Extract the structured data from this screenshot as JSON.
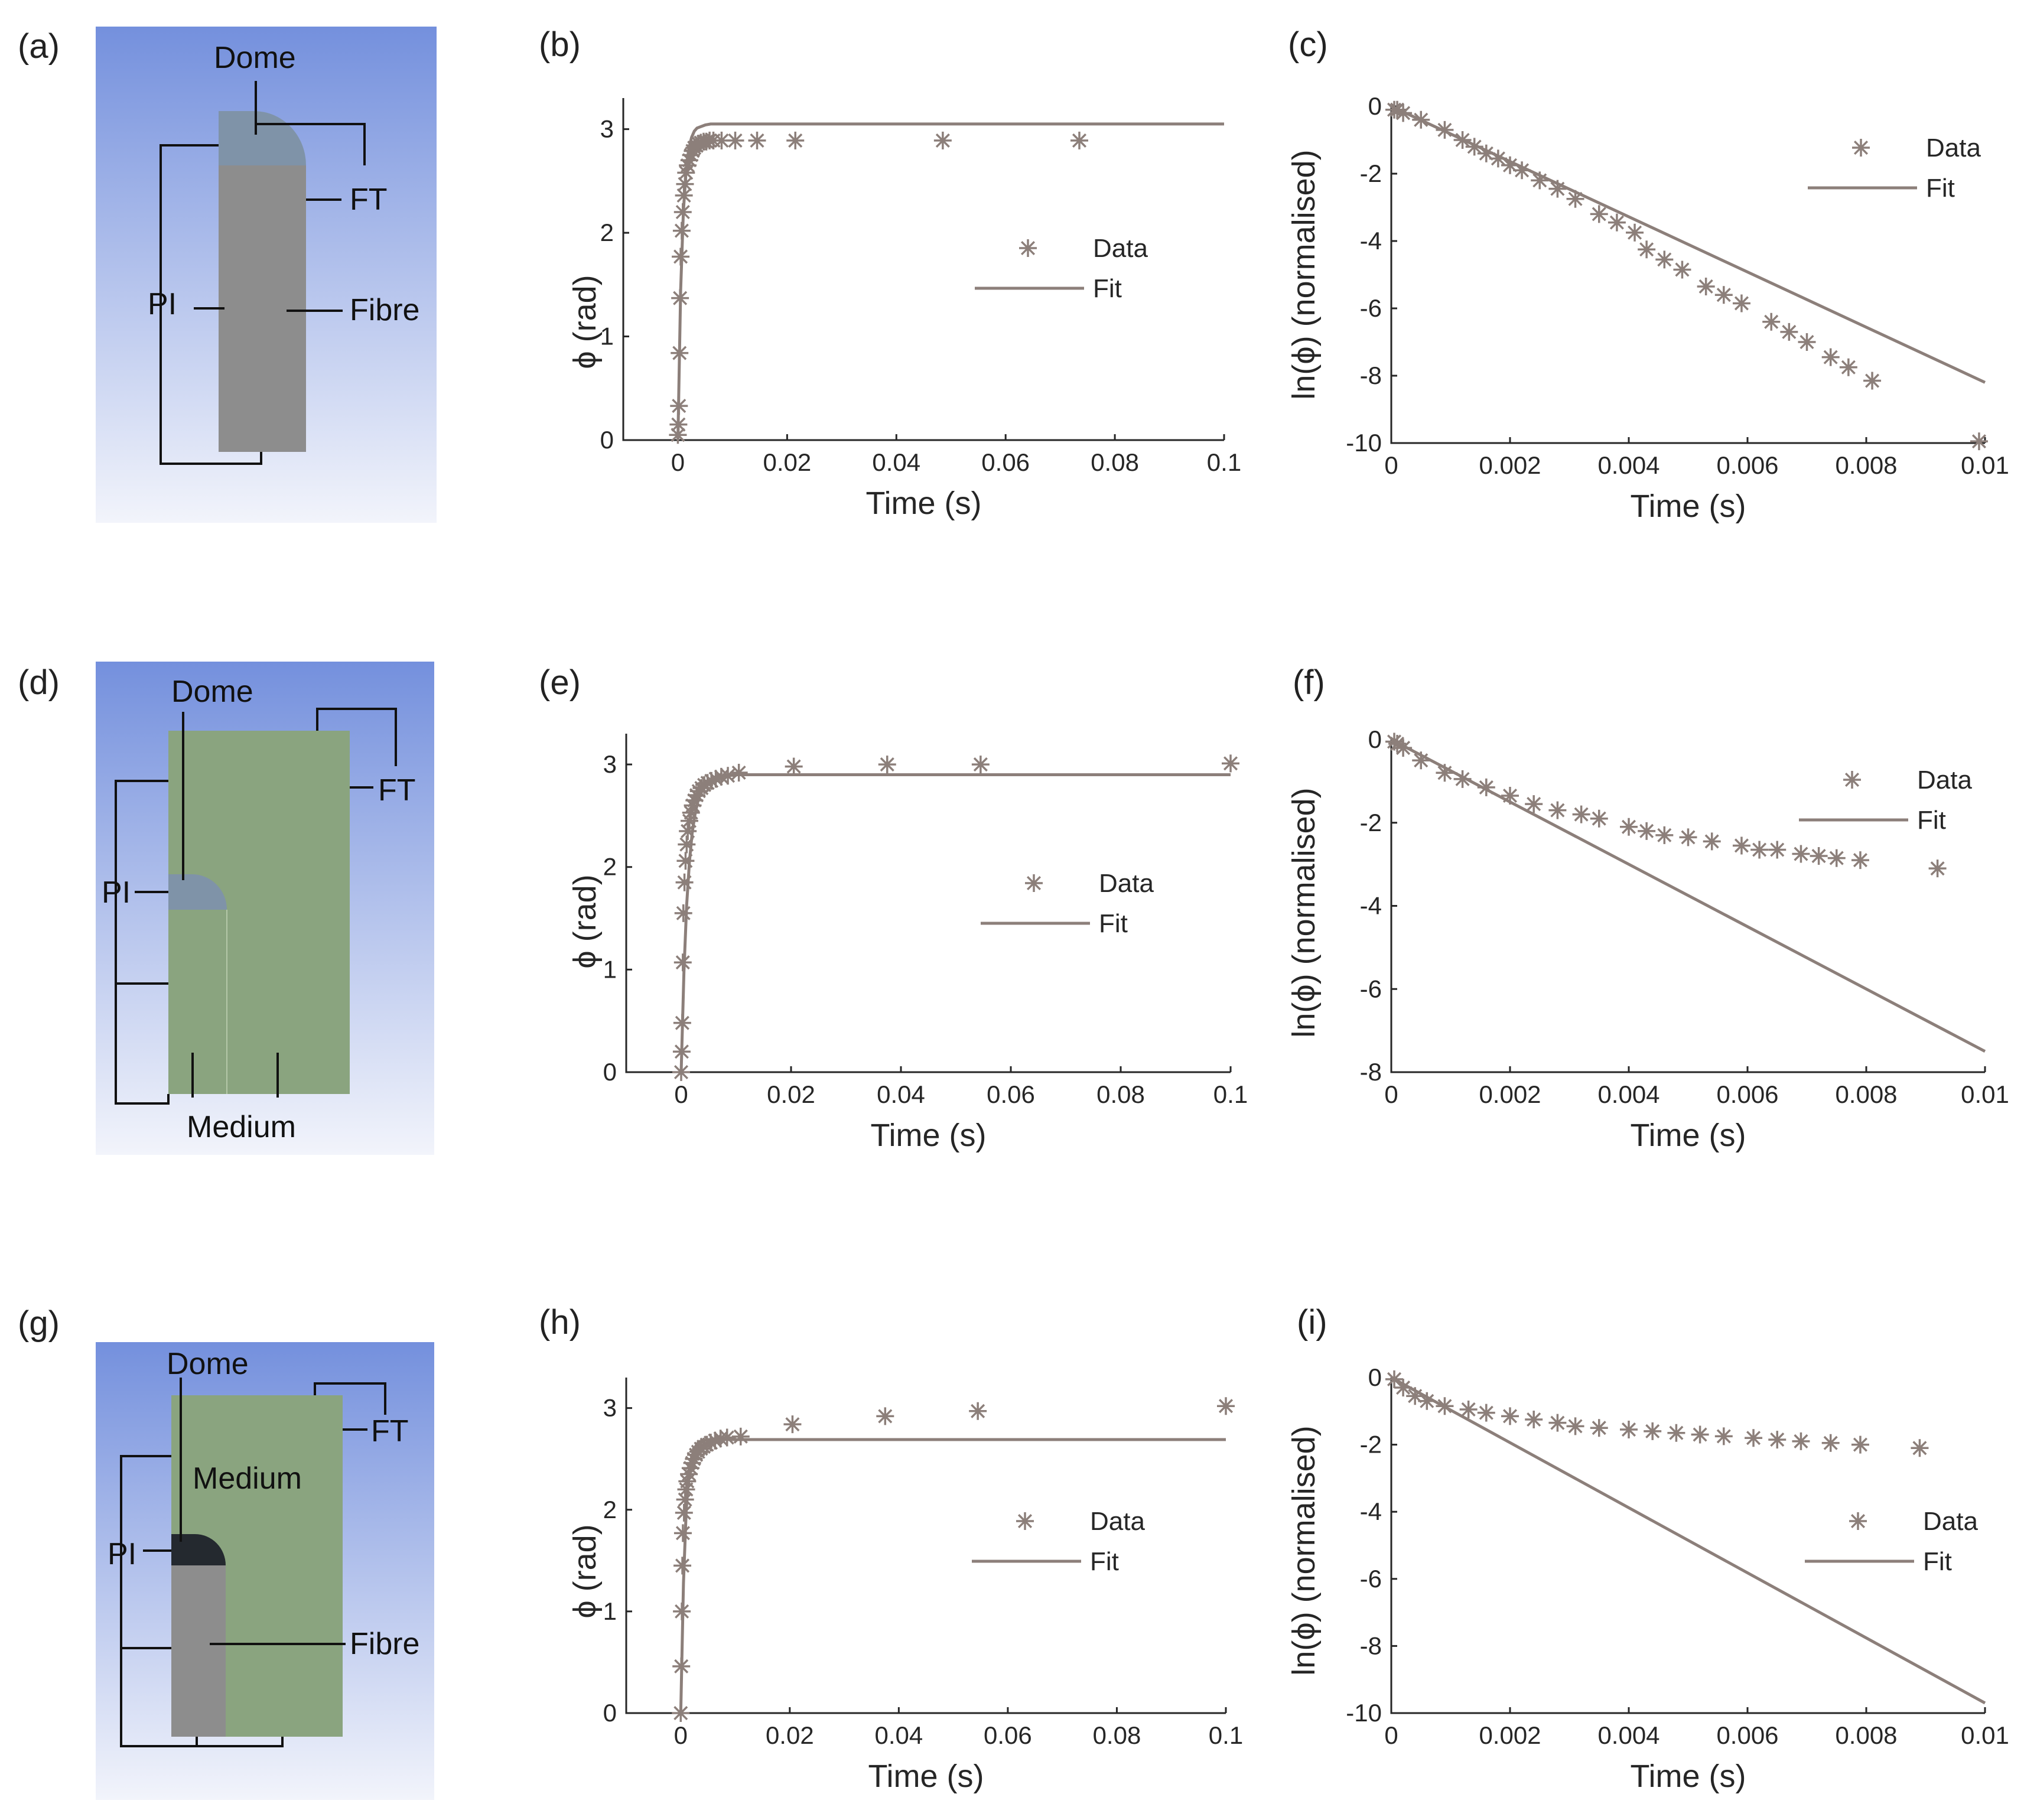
{
  "colors": {
    "series": "#8c7f7a",
    "axis": "#262626",
    "bg_top": "#7490dd",
    "bg_bottom": "#f2f4fb",
    "fibre": "#8d8d8d",
    "dome": "#7f93a8",
    "medium": "#8aa47f",
    "dome_dark": "#24292f"
  },
  "diagrams": [
    {
      "panel": "(a)",
      "labels": {
        "dome": "Dome",
        "ft": "FT",
        "pi": "PI",
        "fibre": "Fibre"
      }
    },
    {
      "panel": "(d)",
      "labels": {
        "dome": "Dome",
        "ft": "FT",
        "pi": "PI",
        "medium": "Medium"
      }
    },
    {
      "panel": "(g)",
      "labels": {
        "dome": "Dome",
        "ft": "FT",
        "pi": "PI",
        "medium": "Medium",
        "fibre": "Fibre"
      }
    }
  ],
  "chart_data": [
    {
      "id": "b",
      "panel": "(b)",
      "type": "scatter",
      "xlabel": "Time (s)",
      "ylabel": "ϕ (rad)",
      "xlim": [
        -0.01,
        0.1
      ],
      "ylim": [
        0,
        3.3
      ],
      "xticks": [
        0,
        0.02,
        0.04,
        0.06,
        0.08,
        0.1
      ],
      "xticklabels": [
        "0",
        "0.02",
        "0.04",
        "0.06",
        "0.08",
        "0.1"
      ],
      "yticks": [
        0,
        1,
        2,
        3
      ],
      "yticklabels": [
        "0",
        "1",
        "2",
        "3"
      ],
      "legend": {
        "data": "Data",
        "fit": "Fit"
      },
      "series": [
        {
          "name": "Data",
          "kind": "markers",
          "x": [
            0.0,
            0.0001,
            0.0002,
            0.0003,
            0.0004,
            0.0005,
            0.0007,
            0.0009,
            0.0011,
            0.0013,
            0.0015,
            0.0018,
            0.0021,
            0.0024,
            0.0027,
            0.003,
            0.0034,
            0.0038,
            0.0042,
            0.0047,
            0.0052,
            0.0058,
            0.0065,
            0.008,
            0.0105,
            0.0145,
            0.0215,
            0.0485,
            0.0735
          ],
          "y": [
            0.05,
            0.15,
            0.33,
            0.84,
            1.37,
            1.77,
            2.02,
            2.2,
            2.36,
            2.47,
            2.58,
            2.65,
            2.7,
            2.75,
            2.79,
            2.82,
            2.84,
            2.86,
            2.87,
            2.88,
            2.88,
            2.89,
            2.89,
            2.89,
            2.89,
            2.89,
            2.89,
            2.89,
            2.89
          ]
        },
        {
          "name": "Fit",
          "kind": "line",
          "x": [
            0.0,
            0.0005,
            0.001,
            0.0015,
            0.002,
            0.0025,
            0.003,
            0.0035,
            0.004,
            0.005,
            0.006,
            0.007,
            0.008,
            0.01,
            0.015,
            0.02,
            0.04,
            0.06,
            0.08,
            0.1
          ],
          "y": [
            0.0,
            1.44,
            2.2,
            2.6,
            2.81,
            2.92,
            2.98,
            3.01,
            3.02,
            3.04,
            3.05,
            3.05,
            3.05,
            3.05,
            3.05,
            3.05,
            3.05,
            3.05,
            3.05,
            3.05
          ]
        }
      ]
    },
    {
      "id": "c",
      "panel": "(c)",
      "type": "scatter",
      "xlabel": "Time (s)",
      "ylabel": "ln(ϕ) (normalised)",
      "xlim": [
        0,
        0.01
      ],
      "ylim": [
        -10,
        0
      ],
      "xticks": [
        0,
        0.002,
        0.004,
        0.006,
        0.008,
        0.01
      ],
      "xticklabels": [
        "0",
        "0.002",
        "0.004",
        "0.006",
        "0.008",
        "0.01"
      ],
      "yticks": [
        0,
        -2,
        -4,
        -6,
        -8,
        -10
      ],
      "yticklabels": [
        "0",
        "-2",
        "-4",
        "-6",
        "-8",
        "-10"
      ],
      "legend": {
        "data": "Data",
        "fit": "Fit"
      },
      "series": [
        {
          "name": "Data",
          "kind": "markers",
          "x": [
            5e-05,
            0.0001,
            0.0002,
            0.0005,
            0.0009,
            0.0012,
            0.0014,
            0.0016,
            0.0018,
            0.002,
            0.0022,
            0.0025,
            0.0028,
            0.0031,
            0.0035,
            0.0038,
            0.0041,
            0.0043,
            0.0046,
            0.0049,
            0.0053,
            0.0056,
            0.0059,
            0.0064,
            0.0067,
            0.007,
            0.0074,
            0.0077,
            0.0081,
            0.0099
          ],
          "y": [
            -0.1,
            -0.1,
            -0.2,
            -0.4,
            -0.7,
            -1.0,
            -1.2,
            -1.4,
            -1.55,
            -1.75,
            -1.9,
            -2.2,
            -2.45,
            -2.75,
            -3.2,
            -3.45,
            -3.75,
            -4.25,
            -4.55,
            -4.85,
            -5.35,
            -5.6,
            -5.85,
            -6.4,
            -6.7,
            -7.0,
            -7.45,
            -7.75,
            -8.15,
            -9.95
          ]
        },
        {
          "name": "Fit",
          "kind": "line",
          "x": [
            0,
            0.01
          ],
          "y": [
            0,
            -8.2
          ]
        }
      ]
    },
    {
      "id": "e",
      "panel": "(e)",
      "type": "scatter",
      "xlabel": "Time (s)",
      "ylabel": "ϕ (rad)",
      "xlim": [
        -0.01,
        0.1
      ],
      "ylim": [
        0,
        3.3
      ],
      "xticks": [
        0,
        0.02,
        0.04,
        0.06,
        0.08,
        0.1
      ],
      "xticklabels": [
        "0",
        "0.02",
        "0.04",
        "0.06",
        "0.08",
        "0.1"
      ],
      "yticks": [
        0,
        1,
        2,
        3
      ],
      "yticklabels": [
        "0",
        "1",
        "2",
        "3"
      ],
      "legend": {
        "data": "Data",
        "fit": "Fit"
      },
      "series": [
        {
          "name": "Data",
          "kind": "markers",
          "x": [
            0.0,
            0.0001,
            0.0002,
            0.0003,
            0.0004,
            0.0006,
            0.0008,
            0.001,
            0.0012,
            0.0015,
            0.0018,
            0.0021,
            0.0024,
            0.0028,
            0.0032,
            0.0037,
            0.0042,
            0.0048,
            0.0055,
            0.0063,
            0.0073,
            0.0085,
            0.0105,
            0.0205,
            0.0375,
            0.0545,
            0.1
          ],
          "y": [
            0.0,
            0.2,
            0.48,
            1.07,
            1.55,
            1.85,
            2.06,
            2.22,
            2.35,
            2.45,
            2.53,
            2.6,
            2.65,
            2.7,
            2.74,
            2.77,
            2.8,
            2.82,
            2.84,
            2.86,
            2.88,
            2.89,
            2.92,
            2.98,
            3.0,
            3.0,
            3.01
          ]
        },
        {
          "name": "Fit",
          "kind": "line",
          "x": [
            0.0,
            0.0005,
            0.001,
            0.0015,
            0.002,
            0.0025,
            0.003,
            0.0035,
            0.004,
            0.005,
            0.006,
            0.007,
            0.008,
            0.01,
            0.015,
            0.02,
            0.04,
            0.06,
            0.08,
            0.1
          ],
          "y": [
            0.0,
            0.98,
            1.63,
            2.05,
            2.33,
            2.51,
            2.63,
            2.71,
            2.76,
            2.83,
            2.86,
            2.88,
            2.89,
            2.9,
            2.9,
            2.9,
            2.9,
            2.9,
            2.9,
            2.9
          ]
        }
      ]
    },
    {
      "id": "f",
      "panel": "(f)",
      "type": "scatter",
      "xlabel": "Time (s)",
      "ylabel": "ln(ϕ) (normalised)",
      "xlim": [
        0,
        0.01
      ],
      "ylim": [
        -8,
        0
      ],
      "xticks": [
        0,
        0.002,
        0.004,
        0.006,
        0.008,
        0.01
      ],
      "xticklabels": [
        "0",
        "0.002",
        "0.004",
        "0.006",
        "0.008",
        "0.01"
      ],
      "yticks": [
        0,
        -2,
        -4,
        -6,
        -8
      ],
      "yticklabels": [
        "0",
        "-2",
        "-4",
        "-6",
        "-8"
      ],
      "legend": {
        "data": "Data",
        "fit": "Fit"
      },
      "series": [
        {
          "name": "Data",
          "kind": "markers",
          "x": [
            5e-05,
            0.0001,
            0.0002,
            0.0005,
            0.0009,
            0.0012,
            0.0016,
            0.002,
            0.0024,
            0.0028,
            0.0032,
            0.0035,
            0.004,
            0.0043,
            0.0046,
            0.005,
            0.0054,
            0.0059,
            0.0062,
            0.0065,
            0.0069,
            0.0072,
            0.0075,
            0.0079,
            0.0092
          ],
          "y": [
            -0.05,
            -0.1,
            -0.2,
            -0.5,
            -0.8,
            -0.95,
            -1.15,
            -1.35,
            -1.55,
            -1.7,
            -1.8,
            -1.9,
            -2.1,
            -2.2,
            -2.3,
            -2.35,
            -2.45,
            -2.55,
            -2.65,
            -2.65,
            -2.75,
            -2.8,
            -2.85,
            -2.9,
            -3.1
          ]
        },
        {
          "name": "Fit",
          "kind": "line",
          "x": [
            0,
            0.01
          ],
          "y": [
            0,
            -7.5
          ]
        }
      ]
    },
    {
      "id": "h",
      "panel": "(h)",
      "type": "scatter",
      "xlabel": "Time (s)",
      "ylabel": "ϕ (rad)",
      "xlim": [
        -0.01,
        0.1
      ],
      "ylim": [
        0,
        3.3
      ],
      "xticks": [
        0,
        0.02,
        0.04,
        0.06,
        0.08,
        0.1
      ],
      "xticklabels": [
        "0",
        "0.02",
        "0.04",
        "0.06",
        "0.08",
        "0.1"
      ],
      "yticks": [
        0,
        1,
        2,
        3
      ],
      "yticklabels": [
        "0",
        "1",
        "2",
        "3"
      ],
      "legend": {
        "data": "Data",
        "fit": "Fit"
      },
      "series": [
        {
          "name": "Data",
          "kind": "markers",
          "x": [
            0.0,
            0.0001,
            0.0002,
            0.0003,
            0.0004,
            0.0006,
            0.0008,
            0.001,
            0.0012,
            0.0015,
            0.0018,
            0.0021,
            0.0024,
            0.0028,
            0.0032,
            0.0037,
            0.0042,
            0.0048,
            0.0055,
            0.0063,
            0.0073,
            0.0085,
            0.011,
            0.0205,
            0.0375,
            0.0545,
            0.1
          ],
          "y": [
            0.0,
            0.46,
            1.0,
            1.45,
            1.77,
            1.97,
            2.1,
            2.2,
            2.28,
            2.35,
            2.41,
            2.46,
            2.5,
            2.54,
            2.57,
            2.6,
            2.62,
            2.64,
            2.66,
            2.68,
            2.7,
            2.71,
            2.72,
            2.84,
            2.92,
            2.97,
            3.02
          ]
        },
        {
          "name": "Fit",
          "kind": "line",
          "x": [
            0.0,
            0.0005,
            0.001,
            0.0015,
            0.002,
            0.0025,
            0.003,
            0.0035,
            0.004,
            0.005,
            0.006,
            0.007,
            0.008,
            0.01,
            0.015,
            0.02,
            0.04,
            0.06,
            0.08,
            0.1
          ],
          "y": [
            0.0,
            1.28,
            1.99,
            2.35,
            2.52,
            2.6,
            2.65,
            2.67,
            2.68,
            2.69,
            2.69,
            2.69,
            2.69,
            2.69,
            2.69,
            2.69,
            2.69,
            2.69,
            2.69,
            2.69
          ]
        }
      ]
    },
    {
      "id": "i",
      "panel": "(i)",
      "type": "scatter",
      "xlabel": "Time (s)",
      "ylabel": "ln(ϕ) (normalised)",
      "xlim": [
        0,
        0.01
      ],
      "ylim": [
        -10,
        0
      ],
      "xticks": [
        0,
        0.002,
        0.004,
        0.006,
        0.008,
        0.01
      ],
      "xticklabels": [
        "0",
        "0.002",
        "0.004",
        "0.006",
        "0.008",
        "0.01"
      ],
      "yticks": [
        0,
        -2,
        -4,
        -6,
        -8,
        -10
      ],
      "yticklabels": [
        "0",
        "-2",
        "-4",
        "-6",
        "-8",
        "-10"
      ],
      "legend": {
        "data": "Data",
        "fit": "Fit"
      },
      "series": [
        {
          "name": "Data",
          "kind": "markers",
          "x": [
            5e-05,
            0.0002,
            0.0004,
            0.0006,
            0.0009,
            0.0013,
            0.0016,
            0.002,
            0.0024,
            0.0028,
            0.0031,
            0.0035,
            0.004,
            0.0044,
            0.0048,
            0.0052,
            0.0056,
            0.0061,
            0.0065,
            0.0069,
            0.0074,
            0.0079,
            0.0089
          ],
          "y": [
            -0.05,
            -0.3,
            -0.55,
            -0.7,
            -0.85,
            -0.95,
            -1.05,
            -1.15,
            -1.25,
            -1.35,
            -1.45,
            -1.5,
            -1.55,
            -1.6,
            -1.65,
            -1.7,
            -1.75,
            -1.8,
            -1.85,
            -1.9,
            -1.95,
            -2.0,
            -2.1
          ]
        },
        {
          "name": "Fit",
          "kind": "line",
          "x": [
            0,
            0.01
          ],
          "y": [
            0,
            -9.7
          ]
        }
      ]
    }
  ]
}
